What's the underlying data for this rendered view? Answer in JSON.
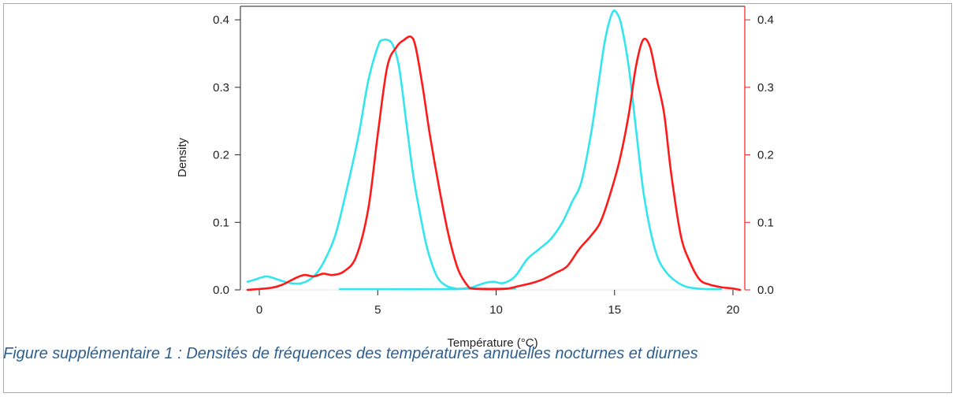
{
  "caption": "Figure supplémentaire 1 : Densités de fréquences des températures annuelles nocturnes et diurnes",
  "chart_data": {
    "type": "line",
    "title": "",
    "xlabel": "Température (°C)",
    "ylabel": "Density",
    "xlim": [
      -0.8,
      20.5
    ],
    "ylim": [
      0,
      0.42
    ],
    "y2lim": [
      0,
      0.42
    ],
    "xticks": [
      0,
      5,
      10,
      15,
      20
    ],
    "yticks": [
      0.0,
      0.1,
      0.2,
      0.3,
      0.4
    ],
    "ytick_labels": [
      "0.0",
      "0.1",
      "0.2",
      "0.3",
      "0.4"
    ],
    "y2tick_labels": [
      "0.0",
      "0.1",
      "0.2",
      "0.3",
      "0.4"
    ],
    "grid": false,
    "legend": false,
    "colors": {
      "cyan": "#33e6ee",
      "red": "#ff1a1a",
      "axis": "#222222",
      "right_axis": "#ff1a1a"
    },
    "series": [
      {
        "color": "#33e6ee",
        "x": [
          -0.5,
          -0.2,
          0.3,
          0.8,
          1.3,
          1.8,
          2.3,
          2.7,
          3.2,
          3.7,
          4.2,
          4.6,
          5.0,
          5.2,
          5.6,
          5.9,
          6.2,
          6.5,
          6.8,
          7.1,
          7.5,
          7.9,
          8.3,
          8.6,
          9.0,
          9.5,
          9.9,
          10.3,
          10.8,
          11.3,
          11.8,
          12.3,
          12.8,
          13.2,
          13.6,
          14.0,
          14.3,
          14.6,
          14.9,
          15.1,
          15.3,
          15.6,
          15.9,
          16.2,
          16.5,
          16.8,
          17.1,
          17.5,
          18.0,
          18.5,
          19.0,
          19.5
        ],
        "values": [
          0.012,
          0.015,
          0.02,
          0.015,
          0.01,
          0.01,
          0.02,
          0.04,
          0.08,
          0.15,
          0.23,
          0.31,
          0.36,
          0.37,
          0.365,
          0.33,
          0.25,
          0.17,
          0.11,
          0.06,
          0.02,
          0.006,
          0.002,
          0.002,
          0.004,
          0.01,
          0.012,
          0.01,
          0.02,
          0.045,
          0.06,
          0.075,
          0.1,
          0.13,
          0.16,
          0.23,
          0.3,
          0.37,
          0.41,
          0.41,
          0.39,
          0.33,
          0.24,
          0.15,
          0.09,
          0.05,
          0.03,
          0.015,
          0.005,
          0.002,
          0.001,
          0.001
        ]
      },
      {
        "color": "#33e6ee",
        "x": [
          3.4,
          5.0,
          8.0,
          9.0,
          10.8
        ],
        "values": [
          0.001,
          0.001,
          0.001,
          0.002,
          0.002
        ]
      },
      {
        "color": "#ff1a1a",
        "x": [
          -0.5,
          0.5,
          1.0,
          1.5,
          1.9,
          2.3,
          2.7,
          3.1,
          3.6,
          4.1,
          4.6,
          5.0,
          5.4,
          5.8,
          6.1,
          6.4,
          6.6,
          6.9,
          7.2,
          7.6,
          8.0,
          8.4,
          8.8,
          9.0,
          9.5,
          10.0,
          10.5,
          11.0,
          11.5,
          12.0,
          12.5,
          13.0,
          13.5,
          14.0,
          14.4,
          14.8,
          15.2,
          15.6,
          15.9,
          16.2,
          16.5,
          16.8,
          17.1,
          17.4,
          17.8,
          18.2,
          18.6,
          19.0,
          19.5,
          20.0,
          20.3
        ],
        "values": [
          0.0,
          0.003,
          0.008,
          0.017,
          0.022,
          0.02,
          0.024,
          0.022,
          0.028,
          0.05,
          0.12,
          0.23,
          0.33,
          0.36,
          0.37,
          0.375,
          0.36,
          0.3,
          0.23,
          0.15,
          0.08,
          0.03,
          0.006,
          0.002,
          0.001,
          0.001,
          0.002,
          0.006,
          0.01,
          0.016,
          0.025,
          0.035,
          0.06,
          0.08,
          0.1,
          0.14,
          0.19,
          0.26,
          0.33,
          0.37,
          0.36,
          0.31,
          0.26,
          0.17,
          0.08,
          0.04,
          0.015,
          0.008,
          0.004,
          0.002,
          0.0
        ]
      }
    ]
  }
}
